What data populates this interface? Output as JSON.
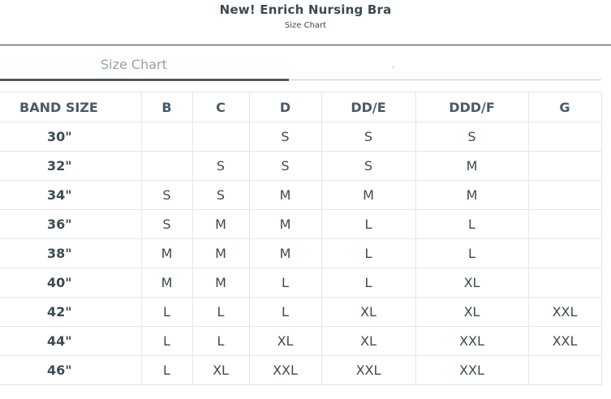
{
  "header": {
    "title": "New! Enrich Nursing Bra",
    "subtitle": "Size Chart"
  },
  "tabs": [
    {
      "label": "Size Chart",
      "active": true
    },
    {
      "label": "",
      "active": false
    }
  ],
  "table": {
    "columns": [
      "BAND SIZE",
      "B",
      "C",
      "D",
      "DD/E",
      "DDD/F",
      "G"
    ],
    "rows": [
      [
        "30\"",
        "",
        "",
        "S",
        "S",
        "S",
        ""
      ],
      [
        "32\"",
        "",
        "S",
        "S",
        "S",
        "M",
        ""
      ],
      [
        "34\"",
        "S",
        "S",
        "M",
        "M",
        "M",
        ""
      ],
      [
        "36\"",
        "S",
        "M",
        "M",
        "L",
        "L",
        ""
      ],
      [
        "38\"",
        "M",
        "M",
        "M",
        "L",
        "L",
        ""
      ],
      [
        "40\"",
        "M",
        "M",
        "L",
        "L",
        "XL",
        ""
      ],
      [
        "42\"",
        "L",
        "L",
        "L",
        "XL",
        "XL",
        "XXL"
      ],
      [
        "44\"",
        "L",
        "L",
        "XL",
        "XL",
        "XXL",
        "XXL"
      ],
      [
        "46\"",
        "L",
        "XL",
        "XXL",
        "XXL",
        "XXL",
        ""
      ]
    ]
  }
}
